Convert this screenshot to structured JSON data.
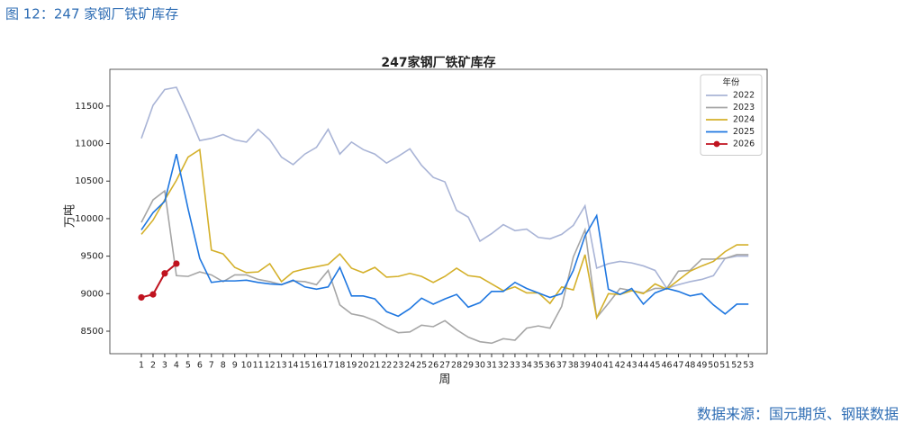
{
  "caption": "图 12：247 家钢厂铁矿库存",
  "source": "数据来源：国元期货、钢联数据",
  "chart_data": {
    "type": "line",
    "title": "247家钢厂铁矿库存",
    "x_label": "周",
    "y_label": "万吨",
    "legend_title": "年份",
    "legend_position": "upper right",
    "x": [
      1,
      2,
      3,
      4,
      5,
      6,
      7,
      8,
      9,
      10,
      11,
      12,
      13,
      14,
      15,
      16,
      17,
      18,
      19,
      20,
      21,
      22,
      23,
      24,
      25,
      26,
      27,
      28,
      29,
      30,
      31,
      32,
      33,
      34,
      35,
      36,
      37,
      38,
      39,
      40,
      41,
      42,
      43,
      44,
      45,
      46,
      47,
      48,
      49,
      50,
      51,
      52,
      53
    ],
    "xlim": [
      -1.7,
      54.6
    ],
    "ylim": [
      8200,
      11990
    ],
    "yticks": [
      8500,
      9000,
      9500,
      10000,
      10500,
      11000,
      11500
    ],
    "series": [
      {
        "name": "2022",
        "color": "#a9b4d6",
        "values": [
          11070,
          11510,
          11720,
          11750,
          11410,
          11040,
          11070,
          11120,
          11050,
          11020,
          11190,
          11050,
          10820,
          10720,
          10860,
          10950,
          11190,
          10860,
          11020,
          10920,
          10860,
          10740,
          10830,
          10930,
          10710,
          10550,
          10490,
          10110,
          10020,
          9700,
          9800,
          9920,
          9840,
          9860,
          9750,
          9730,
          9790,
          9910,
          10170,
          9340,
          9400,
          9430,
          9410,
          9370,
          9310,
          9070,
          9120,
          9160,
          9190,
          9240,
          9470,
          9500,
          9500
        ]
      },
      {
        "name": "2023",
        "color": "#a6a6a6",
        "values": [
          9950,
          10250,
          10370,
          9240,
          9230,
          9290,
          9250,
          9160,
          9250,
          9250,
          9190,
          9160,
          9120,
          9170,
          9160,
          9120,
          9310,
          8850,
          8730,
          8700,
          8640,
          8550,
          8480,
          8490,
          8580,
          8560,
          8640,
          8520,
          8420,
          8360,
          8340,
          8400,
          8380,
          8540,
          8570,
          8540,
          8830,
          9490,
          9850,
          8680,
          8870,
          9070,
          9040,
          9010,
          9070,
          9070,
          9300,
          9310,
          9460,
          9460,
          9470,
          9520,
          9520
        ]
      },
      {
        "name": "2024",
        "color": "#d4b02a",
        "values": [
          9790,
          9980,
          10250,
          10510,
          10820,
          10920,
          9580,
          9530,
          9350,
          9280,
          9290,
          9400,
          9160,
          9290,
          9330,
          9360,
          9390,
          9530,
          9340,
          9280,
          9350,
          9220,
          9230,
          9270,
          9230,
          9150,
          9230,
          9340,
          9240,
          9220,
          9130,
          9040,
          9090,
          9010,
          9010,
          8870,
          9090,
          9050,
          9520,
          8680,
          9000,
          8990,
          9040,
          9000,
          9130,
          9060,
          9180,
          9300,
          9370,
          9430,
          9560,
          9650,
          9650
        ]
      },
      {
        "name": "2025",
        "color": "#1f77e0",
        "values": [
          9850,
          10080,
          10230,
          10860,
          10130,
          9470,
          9150,
          9170,
          9170,
          9180,
          9150,
          9130,
          9120,
          9180,
          9090,
          9060,
          9090,
          9350,
          8970,
          8970,
          8930,
          8760,
          8700,
          8800,
          8940,
          8860,
          8930,
          8990,
          8820,
          8880,
          9030,
          9030,
          9150,
          9070,
          9010,
          8950,
          9000,
          9310,
          9770,
          10040,
          9060,
          8990,
          9070,
          8860,
          9010,
          9070,
          9030,
          8970,
          9000,
          8850,
          8730,
          8860,
          8860
        ]
      },
      {
        "name": "2026",
        "color": "#c0131f",
        "marker": "o",
        "values": [
          8950,
          8990,
          9270,
          9400,
          null,
          null,
          null,
          null,
          null,
          null,
          null,
          null,
          null,
          null,
          null,
          null,
          null,
          null,
          null,
          null,
          null,
          null,
          null,
          null,
          null,
          null,
          null,
          null,
          null,
          null,
          null,
          null,
          null,
          null,
          null,
          null,
          null,
          null,
          null,
          null,
          null,
          null,
          null,
          null,
          null,
          null,
          null,
          null,
          null,
          null,
          null,
          null,
          null
        ]
      }
    ]
  }
}
